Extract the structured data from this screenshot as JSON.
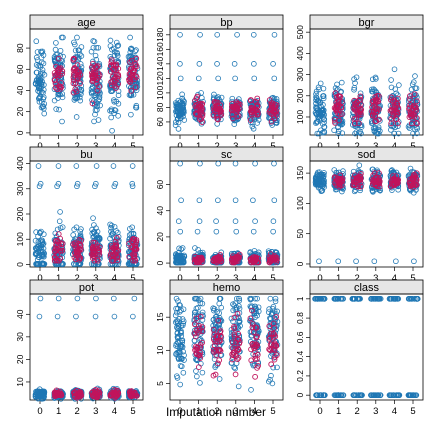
{
  "figure": {
    "xlabel": "Imputation number",
    "observed_color": "#1f77b4",
    "imputed_color": "#c0145c",
    "strip_color": "#e6e6e6",
    "x_ticks": [
      "0",
      "1",
      "2",
      "3",
      "4",
      "5"
    ]
  },
  "chart_data": [
    {
      "type": "scatter",
      "title": "age",
      "ylim": [
        -2,
        98
      ],
      "yticks": [
        0,
        20,
        40,
        60,
        80
      ],
      "observed": {
        "min": 2,
        "max": 90,
        "center": 52,
        "spread": 17
      },
      "imputed": {
        "min": 20,
        "max": 70,
        "center": 55,
        "spread": 8
      },
      "outliers": []
    },
    {
      "type": "scatter",
      "title": "bp",
      "ylim": [
        42,
        188
      ],
      "yticks": [
        60,
        80,
        100,
        120,
        140,
        160,
        180
      ],
      "observed": {
        "min": 50,
        "max": 110,
        "center": 76,
        "spread": 9
      },
      "imputed": {
        "min": 55,
        "max": 100,
        "center": 76,
        "spread": 7
      },
      "outliers": [
        120,
        140,
        180
      ]
    },
    {
      "type": "scatter",
      "title": "bgr",
      "ylim": [
        15,
        515
      ],
      "yticks": [
        100,
        200,
        300,
        400,
        500
      ],
      "observed": {
        "min": 22,
        "max": 490,
        "center": 130,
        "spread": 60
      },
      "imputed": {
        "min": 70,
        "max": 260,
        "center": 140,
        "spread": 35
      },
      "outliers": []
    },
    {
      "type": "scatter",
      "title": "bu",
      "ylim": [
        -10,
        410
      ],
      "yticks": [
        0,
        100,
        200,
        300,
        400
      ],
      "observed": {
        "min": 2,
        "max": 240,
        "center": 55,
        "spread": 45
      },
      "imputed": {
        "min": 15,
        "max": 140,
        "center": 55,
        "spread": 25
      },
      "outliers": [
        310,
        320,
        390
      ]
    },
    {
      "type": "scatter",
      "title": "sc",
      "ylim": [
        -3,
        78
      ],
      "yticks": [
        0,
        20,
        40,
        60
      ],
      "observed": {
        "min": 0.4,
        "max": 15,
        "center": 3,
        "spread": 3
      },
      "imputed": {
        "min": 0.5,
        "max": 8,
        "center": 2.5,
        "spread": 1.5
      },
      "outliers": [
        24,
        32,
        48,
        76
      ]
    },
    {
      "type": "scatter",
      "title": "sod",
      "ylim": [
        -5,
        170
      ],
      "yticks": [
        0,
        50,
        100,
        150
      ],
      "observed": {
        "min": 111,
        "max": 163,
        "center": 137,
        "spread": 8
      },
      "imputed": {
        "min": 120,
        "max": 150,
        "center": 137,
        "spread": 6
      },
      "outliers": [
        4.5
      ]
    },
    {
      "type": "scatter",
      "title": "pot",
      "ylim": [
        2,
        49
      ],
      "yticks": [
        10,
        20,
        30,
        40
      ],
      "observed": {
        "min": 2.5,
        "max": 7.5,
        "center": 4.6,
        "spread": 0.9
      },
      "imputed": {
        "min": 3,
        "max": 6.5,
        "center": 4.6,
        "spread": 0.7
      },
      "outliers": [
        39,
        47
      ]
    },
    {
      "type": "scatter",
      "title": "hemo",
      "ylim": [
        2.5,
        18.5
      ],
      "yticks": [
        5,
        10,
        15
      ],
      "observed": {
        "min": 3.1,
        "max": 17.8,
        "center": 12.5,
        "spread": 2.8
      },
      "imputed": {
        "min": 6,
        "max": 16,
        "center": 11,
        "spread": 2
      },
      "outliers": []
    },
    {
      "type": "scatter",
      "title": "class",
      "ylim": [
        -0.05,
        1.05
      ],
      "yticks": [
        0.0,
        0.2,
        0.4,
        0.6,
        0.8,
        1.0
      ],
      "observed": {
        "levels": [
          0,
          1
        ]
      },
      "imputed": {
        "levels": []
      },
      "outliers": []
    }
  ]
}
